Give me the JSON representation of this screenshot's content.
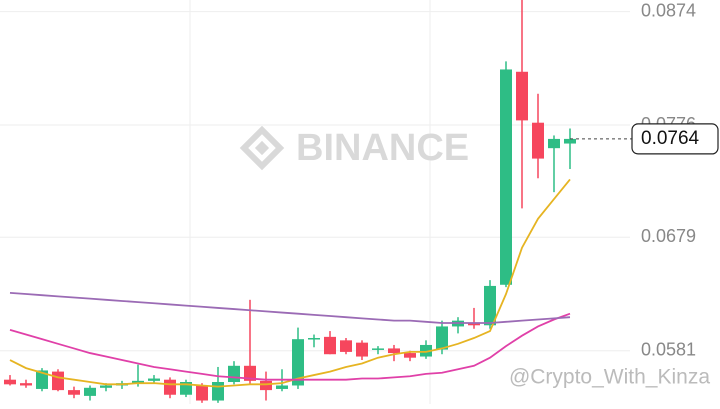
{
  "chart_data": {
    "type": "candlestick",
    "watermark": "BINANCE",
    "credit": "@Crypto_With_Kinza",
    "ylim": [
      0.0535,
      0.0884
    ],
    "yticks": [
      0.0581,
      0.0679,
      0.0776,
      0.0874
    ],
    "last_price": 0.0764,
    "grid": true,
    "up_color": "#2ebd85",
    "down_color": "#f6465d",
    "open": [
      0.0556,
      0.0553,
      0.0548,
      0.0563,
      0.0547,
      0.0542,
      0.0549,
      0.0551,
      0.0553,
      0.0555,
      0.0556,
      0.0543,
      0.0551,
      0.0538,
      0.0554,
      0.0568,
      0.0555,
      0.0548,
      0.0551,
      0.0591,
      0.0593,
      0.059,
      0.0588,
      0.0582,
      0.0583,
      0.0579,
      0.0576,
      0.0582,
      0.0602,
      0.0605,
      0.0603,
      0.0638,
      0.0822,
      0.0778,
      0.0756,
      0.076
    ],
    "high": [
      0.056,
      0.0556,
      0.0566,
      0.0565,
      0.055,
      0.0551,
      0.0553,
      0.0555,
      0.0569,
      0.056,
      0.0558,
      0.0556,
      0.0553,
      0.0567,
      0.0572,
      0.0625,
      0.0563,
      0.0565,
      0.0601,
      0.0595,
      0.0598,
      0.0592,
      0.059,
      0.0585,
      0.0586,
      0.0581,
      0.059,
      0.0607,
      0.061,
      0.0618,
      0.0642,
      0.0831,
      0.0884,
      0.0803,
      0.0767,
      0.0773
    ],
    "low": [
      0.0551,
      0.0549,
      0.0546,
      0.0546,
      0.054,
      0.0538,
      0.0546,
      0.0548,
      0.055,
      0.0553,
      0.054,
      0.0541,
      0.0536,
      0.0536,
      0.0552,
      0.0552,
      0.0538,
      0.0546,
      0.0548,
      0.0584,
      0.0578,
      0.0578,
      0.0573,
      0.0578,
      0.0572,
      0.0572,
      0.0574,
      0.0578,
      0.0596,
      0.06,
      0.06,
      0.0636,
      0.0704,
      0.073,
      0.0718,
      0.0738
    ],
    "close": [
      0.0552,
      0.0551,
      0.0564,
      0.0547,
      0.0543,
      0.0549,
      0.0551,
      0.0553,
      0.0555,
      0.0557,
      0.0543,
      0.0554,
      0.0538,
      0.0554,
      0.0568,
      0.0555,
      0.0547,
      0.0551,
      0.0591,
      0.0592,
      0.0578,
      0.058,
      0.0576,
      0.0583,
      0.0579,
      0.0575,
      0.0586,
      0.0602,
      0.0607,
      0.0603,
      0.0637,
      0.0824,
      0.078,
      0.0747,
      0.0764,
      0.0764
    ],
    "series": [
      {
        "color": "#e6b422",
        "values": [
          0.0573,
          0.0566,
          0.0562,
          0.0558,
          0.0556,
          0.0554,
          0.0552,
          0.0552,
          0.0553,
          0.0553,
          0.0552,
          0.0552,
          0.0551,
          0.055,
          0.0551,
          0.0552,
          0.0552,
          0.0553,
          0.0557,
          0.056,
          0.0563,
          0.0567,
          0.057,
          0.0575,
          0.0578,
          0.058,
          0.058,
          0.0583,
          0.0587,
          0.0592,
          0.0598,
          0.063,
          0.067,
          0.0695,
          0.0712,
          0.0729
        ]
      },
      {
        "color": "#e040a8",
        "values": [
          0.0599,
          0.0595,
          0.0591,
          0.0587,
          0.0583,
          0.0579,
          0.0576,
          0.0573,
          0.057,
          0.0567,
          0.0565,
          0.0563,
          0.0561,
          0.0559,
          0.0558,
          0.0557,
          0.0556,
          0.0556,
          0.0556,
          0.0556,
          0.0556,
          0.0556,
          0.0557,
          0.0557,
          0.0558,
          0.0559,
          0.0561,
          0.0562,
          0.0565,
          0.0568,
          0.0575,
          0.0585,
          0.0594,
          0.0602,
          0.0608,
          0.0613
        ]
      },
      {
        "color": "#9b6bb5",
        "values": [
          0.0631,
          0.063,
          0.0629,
          0.0628,
          0.0627,
          0.0626,
          0.0625,
          0.0624,
          0.0623,
          0.0622,
          0.0621,
          0.062,
          0.0619,
          0.0618,
          0.0617,
          0.0616,
          0.0615,
          0.0614,
          0.0613,
          0.0612,
          0.0611,
          0.061,
          0.0609,
          0.0608,
          0.0607,
          0.0607,
          0.0606,
          0.0605,
          0.0605,
          0.0605,
          0.0605,
          0.0606,
          0.0607,
          0.0608,
          0.0609,
          0.061
        ]
      }
    ]
  }
}
